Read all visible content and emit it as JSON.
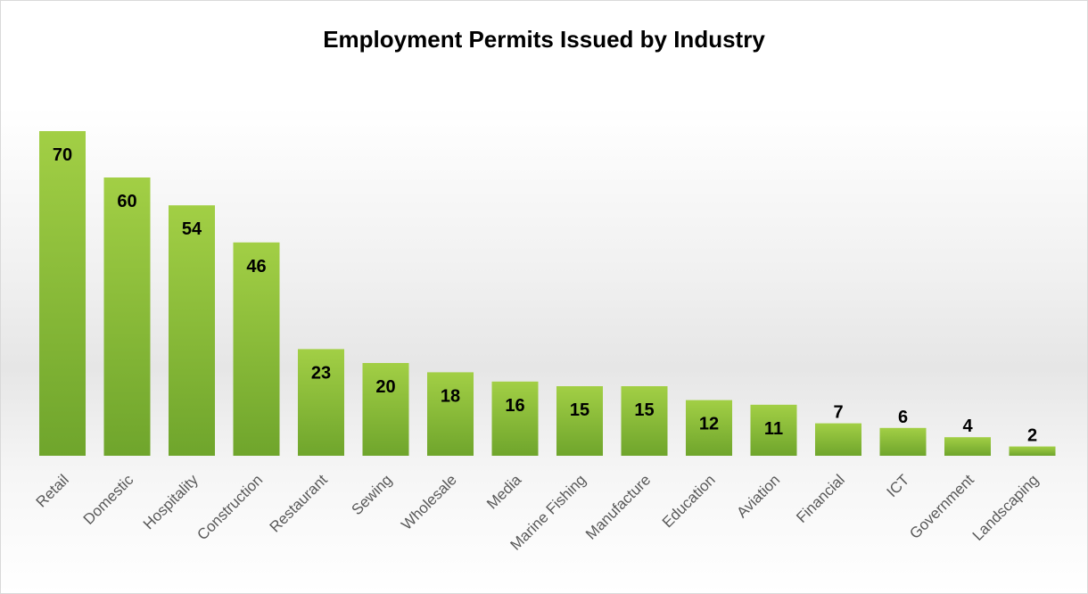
{
  "chart_data": {
    "type": "bar",
    "title": "Employment Permits Issued by Industry",
    "categories": [
      "Retail",
      "Domestic",
      "Hospitality",
      "Construction",
      "Restaurant",
      "Sewing",
      "Wholesale",
      "Media",
      "Marine Fishing",
      "Manufacture",
      "Education",
      "Aviation",
      "Financial",
      "ICT",
      "Government",
      "Landscaping"
    ],
    "values": [
      70,
      60,
      54,
      46,
      23,
      20,
      18,
      16,
      15,
      15,
      12,
      11,
      7,
      6,
      4,
      2
    ],
    "data_labels": [
      "70",
      "60",
      "54",
      "46",
      "23",
      "20",
      "18",
      "16",
      "15",
      "15",
      "12",
      "11",
      "7",
      "6",
      "4",
      "2"
    ],
    "xlabel": "",
    "ylabel": "",
    "ylim": [
      0,
      70
    ],
    "grid": false,
    "legend": "none",
    "bar_color": "#8dc63f",
    "bar_color_light": "#a2cf45",
    "bar_color_dark": "#6fa52c",
    "label_color": "#595959"
  }
}
